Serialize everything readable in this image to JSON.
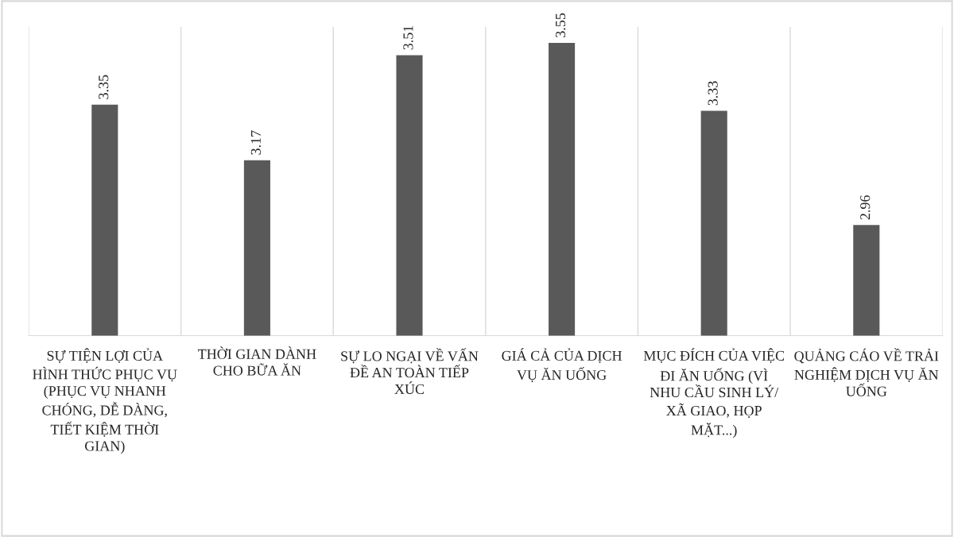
{
  "chart_data": {
    "type": "bar",
    "categories": [
      "SỰ TIỆN LỢI CỦA HÌNH THỨC PHỤC VỤ (PHỤC VỤ NHANH CHÓNG, DỄ DÀNG, TIẾT KIỆM THỜI GIAN)",
      "THỜI GIAN DÀNH CHO BỮA ĂN",
      "SỰ LO NGẠI VỀ VẤN ĐỀ AN TOÀN TIẾP XÚC",
      "GIÁ CẢ CỦA DỊCH VỤ ĂN UỐNG",
      "MỤC ĐÍCH CỦA VIỆC ĐI ĂN UỐNG (VÌ NHU CẦU SINH LÝ/ XÃ GIAO, HỌP MẶT...)",
      "QUẢNG CÁO VỀ TRẢI NGHIỆM DỊCH VỤ ĂN UỐNG"
    ],
    "values": [
      3.35,
      3.17,
      3.51,
      3.55,
      3.33,
      2.96
    ],
    "color": "#595959",
    "ylim": [
      2.6,
      3.6
    ],
    "tick_labels": "x",
    "grid": "x",
    "data_labels": true
  }
}
